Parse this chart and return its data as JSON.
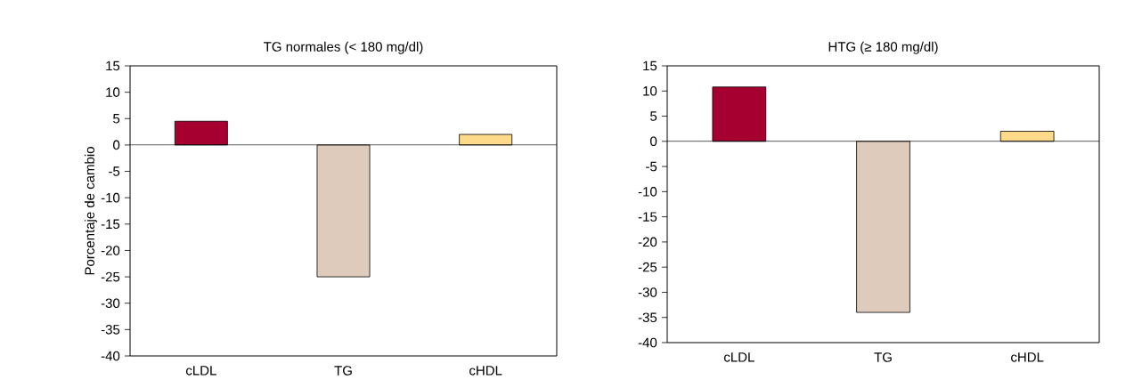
{
  "chart_data": [
    {
      "type": "bar",
      "title": "TG normales (< 180 mg/dl)",
      "ylabel": "Porcentaje de cambio",
      "categories": [
        "cLDL",
        "TG",
        "cHDL"
      ],
      "values": [
        4.5,
        -25,
        2
      ],
      "colors": [
        "#a50030",
        "#dfcbbb",
        "#fdd98a"
      ],
      "ylim": [
        -40,
        15
      ],
      "yticks": [
        -40,
        -35,
        -30,
        -25,
        -20,
        -15,
        -10,
        -5,
        0,
        5,
        10,
        15
      ]
    },
    {
      "type": "bar",
      "title": "HTG (≥ 180 mg/dl)",
      "categories": [
        "cLDL",
        "TG",
        "cHDL"
      ],
      "values": [
        10.8,
        -34,
        2
      ],
      "colors": [
        "#a50030",
        "#dfcbbb",
        "#fdd98a"
      ],
      "ylim": [
        -40,
        15
      ],
      "yticks": [
        -40,
        -35,
        -30,
        -25,
        -20,
        -15,
        -10,
        -5,
        0,
        5,
        10,
        15
      ]
    }
  ]
}
